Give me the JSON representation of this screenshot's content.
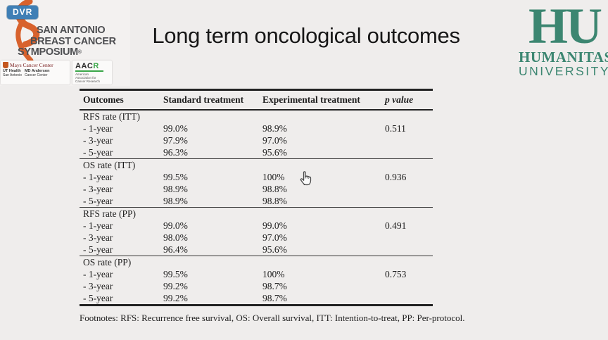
{
  "player": {
    "badge": "DVR"
  },
  "slide": {
    "title": "Long term oncological outcomes",
    "footnote": "Footnotes: RFS: Recurrence free survival, OS: Overall survival, ITT: Intention-to-treat, PP: Per-protocol."
  },
  "logos": {
    "sabcs": {
      "line1": "SAN ANTONIO",
      "line2": "BREAST CANCER",
      "line3": "SYMPOSIUM",
      "registered_mark": "®",
      "ribbon_color": "#d8622d"
    },
    "mays": {
      "name": "Mays Cancer Center",
      "sub1": "UT Health",
      "sub1b": "San Antonio",
      "sub2": "MD Anderson",
      "sub2b": "Cancer Center",
      "maroon": "#7a2020"
    },
    "aacr": {
      "acronym_dark": "AAC",
      "acronym_green": "R",
      "subtext": "American Association for Cancer Research",
      "green": "#3aa648"
    },
    "humanitas": {
      "monogram": "HU",
      "line1": "HUMANITAS",
      "line2": "UNIVERSITY",
      "color": "#3c8671"
    }
  },
  "colors": {
    "background": "#efedec",
    "dvr_badge_blue": "#3f7fb5",
    "table_rule": "#222222"
  },
  "table": {
    "columns": [
      "Outcomes",
      "Standard treatment",
      "Experimental treatment",
      "p value"
    ],
    "sections": [
      {
        "label": "RFS rate (ITT)",
        "rows": [
          {
            "label": "- 1-year",
            "standard": "99.0%",
            "experimental": "98.9%",
            "p": "0.511"
          },
          {
            "label": "- 3-year",
            "standard": "97.9%",
            "experimental": "97.0%",
            "p": ""
          },
          {
            "label": "- 5-year",
            "standard": "96.3%",
            "experimental": "95.6%",
            "p": ""
          }
        ]
      },
      {
        "label": "OS rate (ITT)",
        "rows": [
          {
            "label": "- 1-year",
            "standard": "99.5%",
            "experimental": "100%",
            "p": "0.936"
          },
          {
            "label": "- 3-year",
            "standard": "98.9%",
            "experimental": "98.8%",
            "p": ""
          },
          {
            "label": "- 5-year",
            "standard": "98.9%",
            "experimental": "98.8%",
            "p": ""
          }
        ]
      },
      {
        "label": "RFS rate (PP)",
        "rows": [
          {
            "label": "- 1-year",
            "standard": "99.0%",
            "experimental": "99.0%",
            "p": "0.491"
          },
          {
            "label": "- 3-year",
            "standard": "98.0%",
            "experimental": "97.0%",
            "p": ""
          },
          {
            "label": "- 5-year",
            "standard": "96.4%",
            "experimental": "95.6%",
            "p": ""
          }
        ]
      },
      {
        "label": "OS rate (PP)",
        "rows": [
          {
            "label": "- 1-year",
            "standard": "99.5%",
            "experimental": "100%",
            "p": "0.753"
          },
          {
            "label": "- 3-year",
            "standard": "99.2%",
            "experimental": "98.7%",
            "p": ""
          },
          {
            "label": "- 5-year",
            "standard": "99.2%",
            "experimental": "98.7%",
            "p": ""
          }
        ]
      }
    ]
  },
  "cursor": {
    "type": "hand-pointer"
  }
}
